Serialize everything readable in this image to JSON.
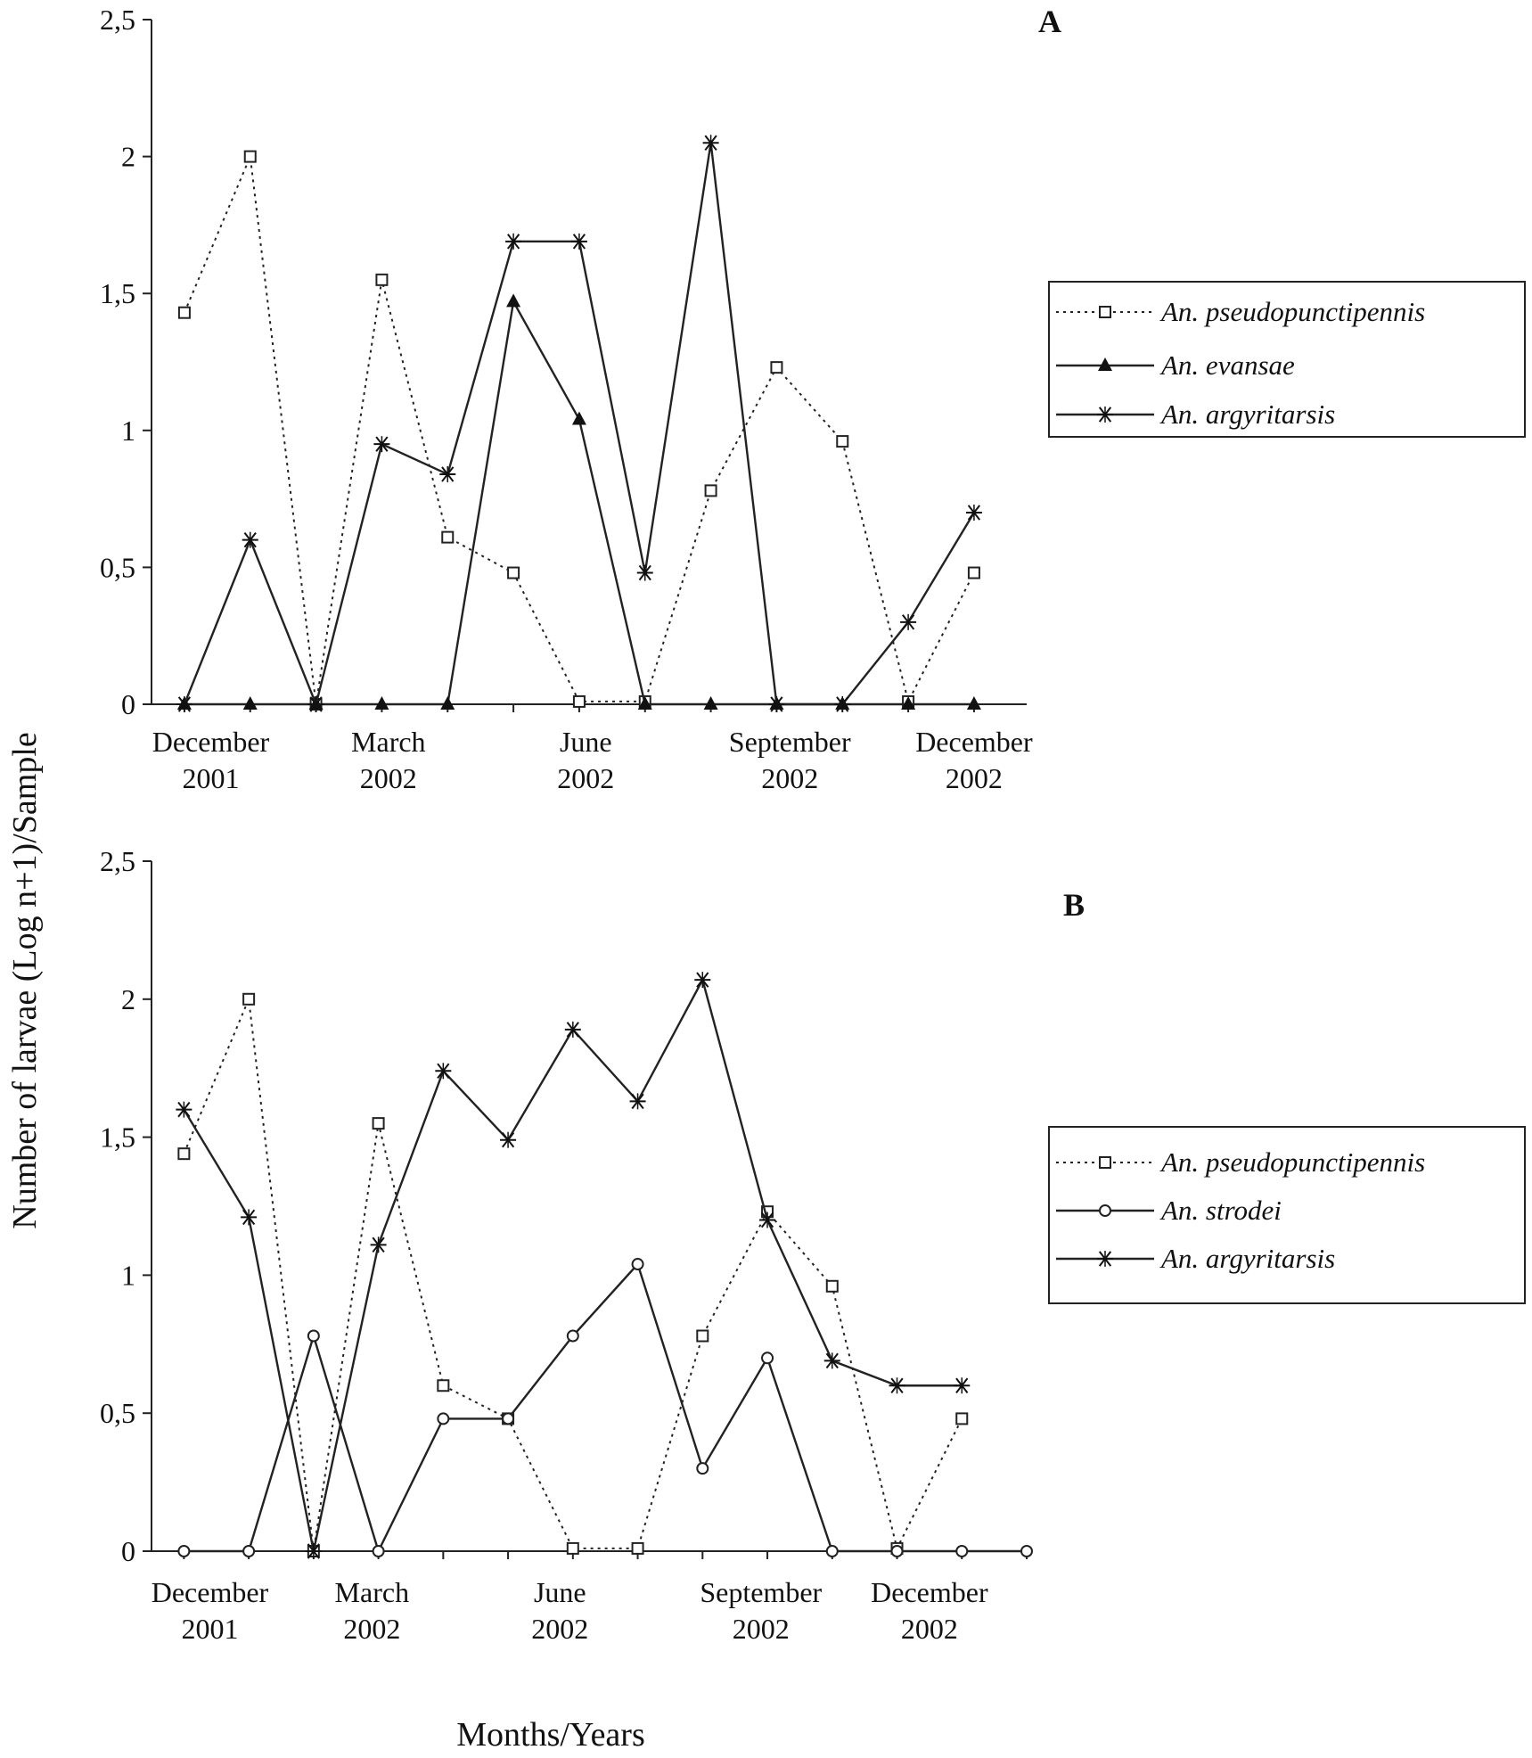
{
  "figure": {
    "ylabel": "Number of larvae  (Log n+1)/Sample",
    "xlabel": "Months/Years"
  },
  "chart_data": [
    {
      "type": "line",
      "panel": "A",
      "y_ticks": [
        "0",
        "0,5",
        "1",
        "1,5",
        "2",
        "2,5"
      ],
      "ylim": [
        0,
        2.5
      ],
      "x_range": [
        -0.5,
        12.8
      ],
      "date_labels": [
        {
          "month": "December",
          "year": "2001",
          "x": 0.4
        },
        {
          "month": "March",
          "year": "2002",
          "x": 3.1
        },
        {
          "month": "June",
          "year": "2002",
          "x": 6.1
        },
        {
          "month": "September",
          "year": "2002",
          "x": 9.2
        },
        {
          "month": "December",
          "year": "2002",
          "x": 12.0
        }
      ],
      "series": [
        {
          "name": "An. pseudopunctipennis",
          "style": "dotted",
          "marker": "square",
          "color": "#222222",
          "x": [
            0,
            1,
            2,
            3,
            4,
            5,
            6,
            7,
            8,
            9,
            10,
            11,
            12
          ],
          "y": [
            1.43,
            2.0,
            0,
            1.55,
            0.61,
            0.48,
            0.01,
            0.01,
            0.78,
            1.23,
            0.96,
            0.01,
            0.48
          ]
        },
        {
          "name": "An. evansae",
          "style": "solid",
          "marker": "triangle",
          "color": "#222222",
          "x": [
            0,
            1,
            2,
            3,
            4,
            5,
            6,
            7,
            8,
            9,
            10,
            11,
            12
          ],
          "y": [
            0,
            0,
            0,
            0,
            0,
            1.47,
            1.04,
            0,
            0,
            0,
            0,
            0,
            0
          ]
        },
        {
          "name": "An. argyritarsis",
          "style": "solid",
          "marker": "asterisk",
          "color": "#222222",
          "x": [
            0,
            1,
            2,
            3,
            4,
            5,
            6,
            7,
            8,
            9,
            10,
            11,
            12
          ],
          "y": [
            0,
            0.6,
            0,
            0.95,
            0.84,
            1.69,
            1.69,
            0.48,
            2.05,
            0,
            0,
            0.3,
            0.7
          ]
        }
      ],
      "legend": {
        "position": "right"
      }
    },
    {
      "type": "line",
      "panel": "B",
      "y_ticks": [
        "0",
        "0,5",
        "1",
        "1,5",
        "2",
        "2,5"
      ],
      "ylim": [
        0,
        2.5
      ],
      "x_range": [
        -0.5,
        13.0
      ],
      "date_labels": [
        {
          "month": "December",
          "year": "2001",
          "x": 0.4
        },
        {
          "month": "March",
          "year": "2002",
          "x": 2.9
        },
        {
          "month": "June",
          "year": "2002",
          "x": 5.8
        },
        {
          "month": "September",
          "year": "2002",
          "x": 8.9
        },
        {
          "month": "December",
          "year": "2002",
          "x": 11.5
        }
      ],
      "series": [
        {
          "name": "An. pseudopunctipennis",
          "style": "dotted",
          "marker": "square",
          "color": "#222222",
          "x": [
            0,
            1,
            2,
            3,
            4,
            5,
            6,
            7,
            8,
            9,
            10,
            11,
            12
          ],
          "y": [
            1.44,
            2.0,
            0,
            1.55,
            0.6,
            0.48,
            0.01,
            0.01,
            0.78,
            1.23,
            0.96,
            0.01,
            0.48
          ]
        },
        {
          "name": "An. strodei",
          "style": "solid",
          "marker": "circle",
          "color": "#222222",
          "x": [
            0,
            1,
            2,
            3,
            4,
            5,
            6,
            7,
            8,
            9,
            10,
            11,
            12,
            13
          ],
          "y": [
            0,
            0,
            0.78,
            0,
            0.48,
            0.48,
            0.78,
            1.04,
            0.3,
            0.7,
            0,
            0,
            0,
            0
          ]
        },
        {
          "name": "An. argyritarsis",
          "style": "solid",
          "marker": "asterisk",
          "color": "#222222",
          "x": [
            0,
            1,
            2,
            3,
            4,
            5,
            6,
            7,
            8,
            9,
            10,
            11,
            12
          ],
          "y": [
            1.6,
            1.21,
            0,
            1.11,
            1.74,
            1.49,
            1.89,
            1.63,
            2.07,
            1.2,
            0.69,
            0.6,
            0.6
          ]
        }
      ],
      "legend": {
        "position": "right"
      }
    }
  ]
}
